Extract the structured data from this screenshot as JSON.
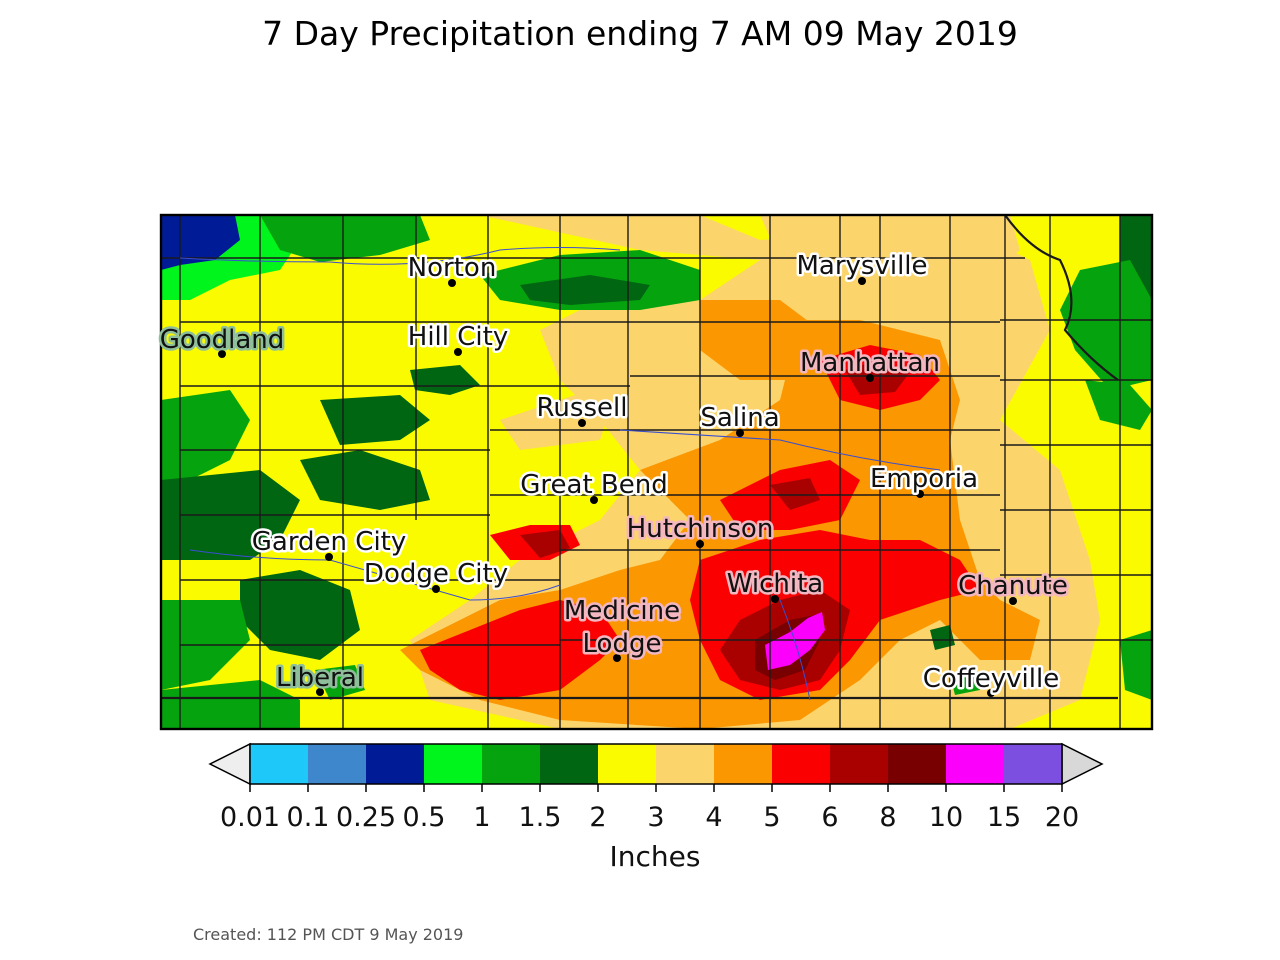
{
  "title": "7 Day Precipitation ending 7 AM 09 May 2019",
  "created": "Created: 112 PM CDT 9 May 2019",
  "legend": {
    "unit": "Inches",
    "ticks": [
      "0.01",
      "0.1",
      "0.25",
      "0.5",
      "1",
      "1.5",
      "2",
      "3",
      "4",
      "5",
      "6",
      "8",
      "10",
      "15",
      "20"
    ],
    "colors": [
      "#1ec8f8",
      "#3f87cc",
      "#001b96",
      "#00f51c",
      "#05a40e",
      "#006612",
      "#fbfb00",
      "#fcd46c",
      "#fb9700",
      "#fb0000",
      "#a90000",
      "#780000",
      "#fb00fb",
      "#7d4fe0"
    ],
    "under_color": "#eeeeee",
    "over_color": "#d8d8d8"
  },
  "cities": [
    {
      "name": "Norton",
      "halo": "#ffffff"
    },
    {
      "name": "Marysville",
      "halo": "#ffffff"
    },
    {
      "name": "Goodland",
      "halo": "#8fbf9a"
    },
    {
      "name": "Hill City",
      "halo": "#ffffff"
    },
    {
      "name": "Manhattan",
      "halo": "#f2b7c0"
    },
    {
      "name": "Russell",
      "halo": "#ffffff"
    },
    {
      "name": "Salina",
      "halo": "#ffffff"
    },
    {
      "name": "Great Bend",
      "halo": "#ffffff"
    },
    {
      "name": "Emporia",
      "halo": "#ffffff"
    },
    {
      "name": "Hutchinson",
      "halo": "#f2b7c0"
    },
    {
      "name": "Garden City",
      "halo": "#ffffff"
    },
    {
      "name": "Dodge City",
      "halo": "#ffffff"
    },
    {
      "name": "Wichita",
      "halo": "#f2b7c0"
    },
    {
      "name": "Chanute",
      "halo": "#f2b7c0"
    },
    {
      "name": "Medicine Lodge",
      "halo": "#f2b7c0"
    },
    {
      "name": "Liberal",
      "halo": "#8fbf9a"
    },
    {
      "name": "Coffeyville",
      "halo": "#ffffff"
    }
  ]
}
